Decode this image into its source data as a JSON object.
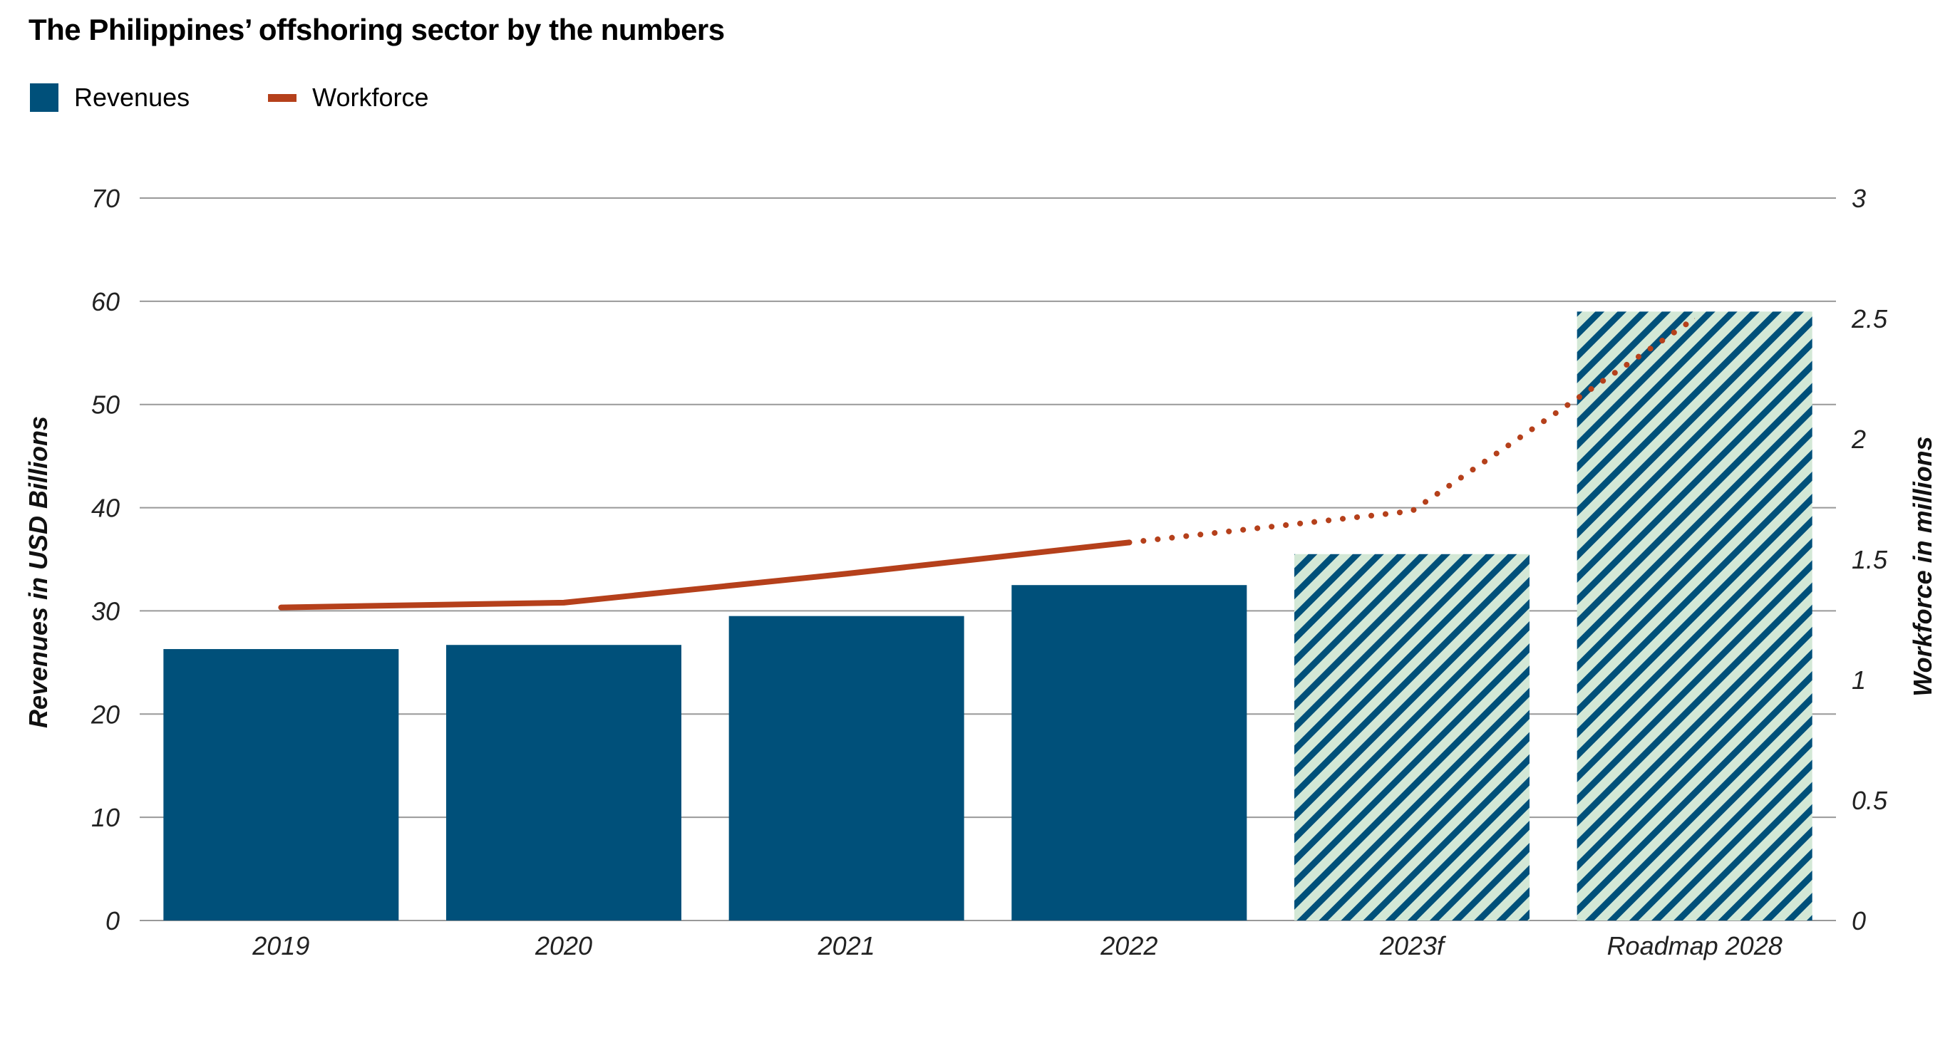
{
  "title": "The Philippines’ offshoring sector by the numbers",
  "legend": {
    "revenues": "Revenues",
    "workforce": "Workforce"
  },
  "colors": {
    "bar": "#00507A",
    "hatch_bg": "#D3E8D6",
    "line": "#B5401B",
    "grid": "#999999"
  },
  "chart_data": {
    "type": "bar",
    "title": "The Philippines’ offshoring sector by the numbers",
    "categories": [
      "2019",
      "2020",
      "2021",
      "2022",
      "2023f",
      "Roadmap 2028"
    ],
    "ylabel": "Revenues in USD Billions",
    "y2label": "Workforce in millions",
    "ylim": [
      0,
      70
    ],
    "y2lim": [
      0,
      3
    ],
    "yticks": [
      "0",
      "10",
      "20",
      "30",
      "40",
      "50",
      "60",
      "70"
    ],
    "y2ticks": [
      "0",
      "0.5",
      "1",
      "1.5",
      "2",
      "2.5",
      "3"
    ],
    "grid": true,
    "legend_position": "top-left",
    "series": [
      {
        "name": "Revenues",
        "type": "bar",
        "axis": "left",
        "values": [
          26.3,
          26.7,
          29.5,
          32.5,
          35.5,
          59
        ],
        "hatched": [
          false,
          false,
          false,
          false,
          true,
          true
        ]
      },
      {
        "name": "Workforce",
        "type": "line",
        "axis": "right",
        "values": [
          1.3,
          1.32,
          1.44,
          1.57,
          1.7,
          2.5
        ],
        "dotted_from_index": 3
      }
    ]
  }
}
